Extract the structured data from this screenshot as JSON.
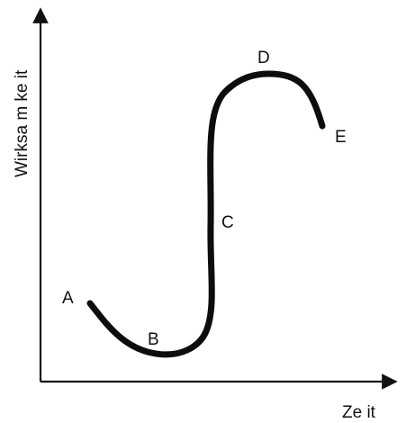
{
  "axes": {
    "x_label": "Ze it",
    "y_label": "Wirksa m ke it"
  },
  "curve_points": [
    {
      "label": "A"
    },
    {
      "label": "B"
    },
    {
      "label": "C"
    },
    {
      "label": "D"
    },
    {
      "label": "E"
    }
  ],
  "colors": {
    "curve": "#0d0d0d",
    "axes": "#111111",
    "text": "#111111"
  }
}
